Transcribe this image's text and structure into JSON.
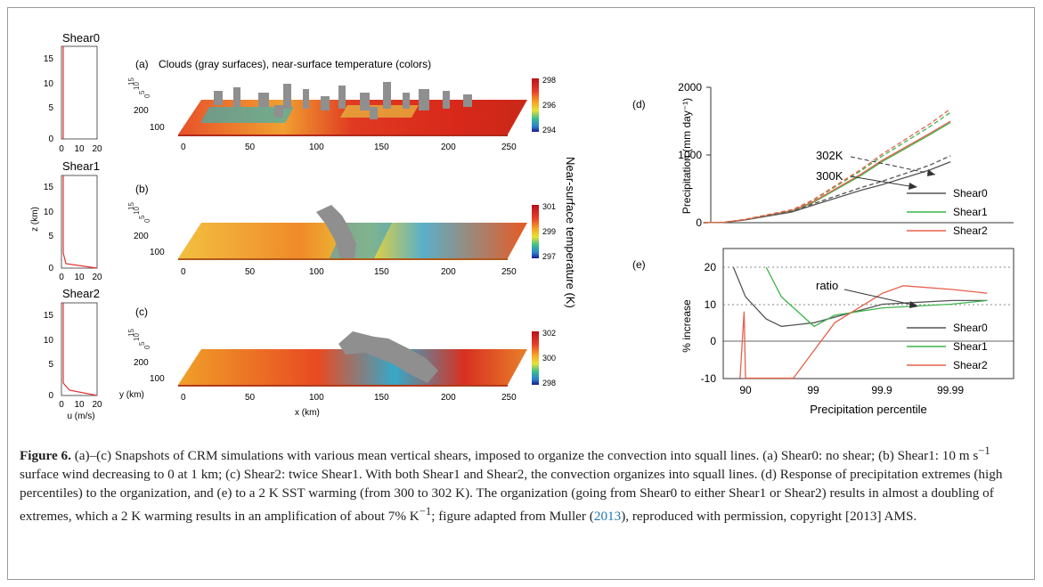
{
  "panels_abc": {
    "profiles": [
      {
        "title": "Shear0",
        "yticks": [
          "0",
          "5",
          "10",
          "15"
        ],
        "xticks": [
          "0",
          "10",
          "20"
        ]
      },
      {
        "title": "Shear1",
        "ylabel": "z (km)",
        "yticks": [
          "0",
          "5",
          "10",
          "15"
        ],
        "xticks": [
          "0",
          "10",
          "20"
        ]
      },
      {
        "title": "Shear2",
        "yticks": [
          "0",
          "5",
          "10",
          "15"
        ],
        "xticks": [
          "0",
          "10",
          "20"
        ],
        "xlabel": "u (m/s)"
      }
    ],
    "snapshots": [
      {
        "label": "(a)",
        "title": "Clouds (gray surfaces), near-surface temperature (colors)",
        "cbar_ticks": [
          "298",
          "296",
          "294"
        ]
      },
      {
        "label": "(b)",
        "cbar_ticks": [
          "301",
          "299",
          "297"
        ]
      },
      {
        "label": "(c)",
        "cbar_ticks": [
          "302",
          "300",
          "298"
        ]
      }
    ],
    "x_ticks": [
      "0",
      "50",
      "100",
      "150",
      "200",
      "250"
    ],
    "y_ticks": [
      "100",
      "200"
    ],
    "z_ticks": [
      "0",
      "5",
      "10",
      "15"
    ],
    "xlabel": "x (km)",
    "ylabel": "y (km)",
    "cbar_label": "Near-surface temperature (K)",
    "colors": {
      "cloud": "#8f8f8f",
      "warm": "#d42a1a",
      "mid": "#f5a524",
      "cool": "#2aa0c8"
    }
  },
  "chart_data": [
    {
      "type": "line",
      "panel": "(d)",
      "ylabel": "Precipitation (mm day⁻¹)",
      "ylim": [
        0,
        2000
      ],
      "yticks": [
        "0",
        "1000",
        "2000"
      ],
      "x_scale": "percentile (log of 1-p)",
      "x": [
        80,
        90,
        95,
        99,
        99.5,
        99.9,
        99.95,
        99.99,
        99.995
      ],
      "series": [
        {
          "name": "Shear0",
          "style": "solid",
          "color": "#555555",
          "values": [
            0,
            5,
            40,
            160,
            260,
            480,
            560,
            780,
            900
          ]
        },
        {
          "name": "Shear1",
          "style": "solid",
          "color": "#3cb44b",
          "values": [
            0,
            6,
            45,
            175,
            300,
            700,
            900,
            1300,
            1480
          ]
        },
        {
          "name": "Shear2",
          "style": "solid",
          "color": "#e8604c",
          "values": [
            0,
            6,
            45,
            180,
            310,
            720,
            920,
            1320,
            1500
          ]
        },
        {
          "name": "Shear0 302K",
          "style": "dashed",
          "color": "#555555",
          "values": [
            0,
            5,
            42,
            170,
            280,
            520,
            610,
            850,
            990
          ]
        },
        {
          "name": "Shear1 302K",
          "style": "dashed",
          "color": "#3cb44b",
          "values": [
            0,
            6,
            48,
            190,
            330,
            770,
            980,
            1420,
            1630
          ]
        },
        {
          "name": "Shear2 302K",
          "style": "dashed",
          "color": "#e8604c",
          "values": [
            0,
            6,
            49,
            195,
            340,
            790,
            1010,
            1460,
            1680
          ]
        }
      ],
      "annotations": [
        "302K",
        "300K"
      ],
      "legend": [
        "Shear0",
        "Shear1",
        "Shear2"
      ],
      "legend_position": "bottom-right"
    },
    {
      "type": "line",
      "panel": "(e)",
      "ylabel": "% increase",
      "xlabel": "Precipitation percentile",
      "ylim": [
        -10,
        25
      ],
      "yticks": [
        "-10",
        "0",
        "10",
        "20"
      ],
      "xticks": [
        "90",
        "99",
        "99.9",
        "99.99"
      ],
      "reference_lines": [
        10,
        20
      ],
      "series": [
        {
          "name": "Shear0",
          "color": "#555555",
          "values": [
            {
              "x": 85,
              "y": 20
            },
            {
              "x": 90,
              "y": 12
            },
            {
              "x": 95,
              "y": 6
            },
            {
              "x": 97,
              "y": 4
            },
            {
              "x": 99,
              "y": 5
            },
            {
              "x": 99.9,
              "y": 10
            },
            {
              "x": 99.99,
              "y": 11
            },
            {
              "x": 99.997,
              "y": 11
            }
          ]
        },
        {
          "name": "Shear1",
          "color": "#3cb44b",
          "values": [
            {
              "x": 95,
              "y": 20
            },
            {
              "x": 97,
              "y": 12
            },
            {
              "x": 99,
              "y": 4
            },
            {
              "x": 99.5,
              "y": 7
            },
            {
              "x": 99.9,
              "y": 9
            },
            {
              "x": 99.99,
              "y": 10
            },
            {
              "x": 99.997,
              "y": 11
            }
          ]
        },
        {
          "name": "Shear2",
          "color": "#e8604c",
          "values": [
            {
              "x": 88,
              "y": -10
            },
            {
              "x": 89.5,
              "y": 8
            },
            {
              "x": 90,
              "y": -10
            },
            {
              "x": 98,
              "y": -10
            },
            {
              "x": 99.5,
              "y": 5
            },
            {
              "x": 99.9,
              "y": 13
            },
            {
              "x": 99.95,
              "y": 15
            },
            {
              "x": 99.99,
              "y": 14
            },
            {
              "x": 99.997,
              "y": 13
            }
          ]
        }
      ],
      "annotations": [
        "ratio"
      ],
      "legend": [
        "Shear0",
        "Shear1",
        "Shear2"
      ],
      "legend_position": "bottom-right"
    }
  ],
  "caption": {
    "label": "Figure 6.",
    "text_1": " (a)–(c) Snapshots of CRM simulations with various mean vertical shears, imposed to organize the convection into squall lines. (a) Shear0: no shear; (b) Shear1: 10 m s",
    "sup_1": "−1",
    "text_2": " surface wind decreasing to 0 at 1 km; (c) Shear2: twice Shear1. With both Shear1 and Shear2, the convection organizes into squall lines. (d) Response of precipitation extremes (high percentiles) to the organization, and (e) to a 2 K SST warming (from 300 to 302 K). The organization (going from Shear0 to either Shear1 or Shear2) results in almost a doubling of extremes, which a 2 K warming results in an amplification of about 7% K",
    "sup_2": "−1",
    "text_3": "; figure adapted from Muller (",
    "ref_year": "2013",
    "text_4": "), reproduced with permission, copyright [2013] AMS."
  }
}
